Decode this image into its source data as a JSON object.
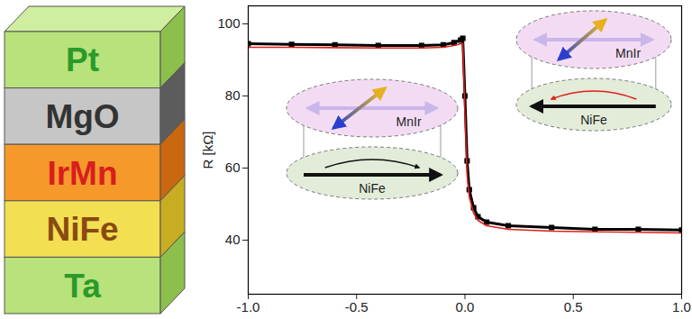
{
  "layer_stack": {
    "layers": [
      "Pt",
      "MgO",
      "IrMn",
      "NiFe",
      "Ta"
    ]
  },
  "chart_data": {
    "type": "line",
    "ylabel": "R [kΩ]",
    "x": [
      -1,
      -0.8,
      -0.6,
      -0.4,
      -0.2,
      -0.1,
      -0.05,
      -0.02,
      -0.01,
      0,
      0.01,
      0.02,
      0.04,
      0.06,
      0.1,
      0.2,
      0.4,
      0.6,
      0.8,
      1
    ],
    "series": [
      {
        "color": "#000000",
        "marker": "square",
        "line_style": "solid",
        "values": [
          94.5,
          94.3,
          94.2,
          94,
          94,
          94.2,
          94.8,
          95.5,
          96,
          80,
          62,
          54,
          49,
          46.5,
          45,
          44,
          43.5,
          43,
          43,
          42.8
        ]
      },
      {
        "color": "#e0201a",
        "line_style": "solid",
        "values": [
          93.5,
          93.5,
          93.4,
          93.3,
          93.3,
          93.5,
          94,
          94.5,
          94.5,
          75,
          58,
          52,
          47.5,
          45.5,
          44,
          43,
          42.5,
          42.3,
          42.2,
          42
        ]
      }
    ],
    "xlim": [
      -1,
      1
    ],
    "xticks": [
      {
        "value": -1,
        "label": "-1.0"
      },
      {
        "value": -0.5,
        "label": "-0.5"
      },
      {
        "value": 0,
        "label": "0.0"
      },
      {
        "value": 0.5,
        "label": "0.5"
      },
      {
        "value": 1,
        "label": "1.0"
      }
    ],
    "ylim": [
      25,
      105
    ],
    "yticks": [
      40,
      60,
      80,
      100
    ],
    "grid": false,
    "annotations": [
      {
        "top": "MnIr",
        "bottom": "NiFe"
      },
      {
        "top": "MnIr",
        "bottom": "NiFe"
      }
    ]
  }
}
